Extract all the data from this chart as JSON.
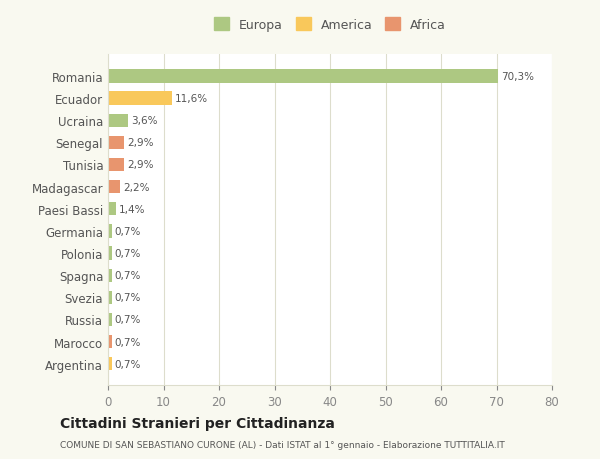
{
  "categories": [
    "Romania",
    "Ecuador",
    "Ucraina",
    "Senegal",
    "Tunisia",
    "Madagascar",
    "Paesi Bassi",
    "Germania",
    "Polonia",
    "Spagna",
    "Svezia",
    "Russia",
    "Marocco",
    "Argentina"
  ],
  "values": [
    70.3,
    11.6,
    3.6,
    2.9,
    2.9,
    2.2,
    1.4,
    0.7,
    0.7,
    0.7,
    0.7,
    0.7,
    0.7,
    0.7
  ],
  "labels": [
    "70,3%",
    "11,6%",
    "3,6%",
    "2,9%",
    "2,9%",
    "2,2%",
    "1,4%",
    "0,7%",
    "0,7%",
    "0,7%",
    "0,7%",
    "0,7%",
    "0,7%",
    "0,7%"
  ],
  "colors": [
    "#adc882",
    "#f9c85b",
    "#adc882",
    "#e8956e",
    "#e8956e",
    "#e8956e",
    "#adc882",
    "#adc882",
    "#adc882",
    "#adc882",
    "#adc882",
    "#adc882",
    "#e8956e",
    "#f9c85b"
  ],
  "legend": [
    {
      "label": "Europa",
      "color": "#adc882"
    },
    {
      "label": "America",
      "color": "#f9c85b"
    },
    {
      "label": "Africa",
      "color": "#e8956e"
    }
  ],
  "xlim": [
    0,
    80
  ],
  "xticks": [
    0,
    10,
    20,
    30,
    40,
    50,
    60,
    70,
    80
  ],
  "title": "Cittadini Stranieri per Cittadinanza",
  "subtitle": "COMUNE DI SAN SEBASTIANO CURONE (AL) - Dati ISTAT al 1° gennaio - Elaborazione TUTTITALIA.IT",
  "background_color": "#f9f9f0",
  "bar_background": "#ffffff",
  "grid_color": "#ddddcc"
}
